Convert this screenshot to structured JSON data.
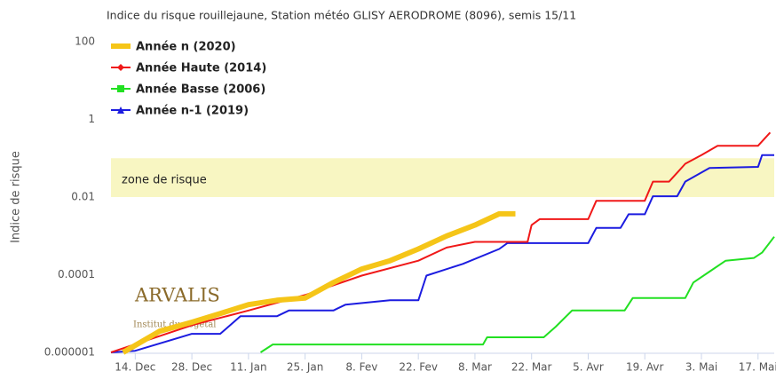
{
  "chart_data": {
    "type": "line",
    "title": "Indice du risque rouillejaune, Station météo GLISY AERODROME (8096), semis 15/11",
    "y_label": "Indice de risque",
    "log_scale": true,
    "grid": false,
    "legend": "top-left",
    "xlim": [
      8,
      172
    ],
    "xticks": [
      {
        "value": 14,
        "label": "14. Dec"
      },
      {
        "value": 28,
        "label": "28. Dec"
      },
      {
        "value": 42,
        "label": "11. Jan"
      },
      {
        "value": 56,
        "label": "25. Jan"
      },
      {
        "value": 70,
        "label": "8. Fev"
      },
      {
        "value": 84,
        "label": "22. Fev"
      },
      {
        "value": 98,
        "label": "8. Mar"
      },
      {
        "value": 112,
        "label": "22. Mar"
      },
      {
        "value": 126,
        "label": "5. Avr"
      },
      {
        "value": 140,
        "label": "19. Avr"
      },
      {
        "value": 154,
        "label": "3. Mai"
      },
      {
        "value": 168,
        "label": "17. Mai"
      }
    ],
    "ylim": [
      1e-06,
      100
    ],
    "yticks": [
      1e-06,
      0.0001,
      0.01,
      1,
      100
    ],
    "bands": [
      {
        "from": 0.01,
        "to": 0.1,
        "label": "zone de risque",
        "color": "#f8f6c2"
      }
    ],
    "logo": {
      "name": "ARVALIS",
      "subtitle": "Institut du végétal"
    },
    "series": [
      {
        "name": "Année n (2020)",
        "color": "#f5c518",
        "width": 6,
        "marker": "bar",
        "x": [
          11,
          20,
          28,
          35,
          42,
          49,
          56,
          63,
          70,
          77,
          84,
          91,
          98,
          104,
          108
        ],
        "values": [
          1e-06,
          3.5e-06,
          6e-06,
          1e-05,
          1.7e-05,
          2.2e-05,
          2.5e-05,
          6.3e-05,
          0.00014,
          0.00023,
          0.00046,
          0.001,
          0.0019,
          0.0037,
          0.0037
        ]
      },
      {
        "name": "Année Haute (2014)",
        "color": "#f01818",
        "width": 2,
        "marker": "diamond",
        "x": [
          8,
          28,
          42,
          56,
          70,
          84,
          91,
          98,
          111,
          112,
          114,
          126,
          128,
          140,
          142,
          146,
          150,
          154,
          158,
          168,
          171
        ],
        "values": [
          1e-06,
          5e-06,
          1.2e-05,
          3e-05,
          9.5e-05,
          0.00023,
          0.0005,
          0.0007,
          0.0007,
          0.0019,
          0.0027,
          0.0027,
          0.008,
          0.008,
          0.025,
          0.025,
          0.072,
          0.12,
          0.21,
          0.21,
          0.46
        ]
      },
      {
        "name": "Année Basse (2006)",
        "color": "#22e022",
        "width": 2,
        "marker": "square",
        "x": [
          45,
          48,
          100,
          101,
          115,
          118,
          122,
          135,
          137,
          150,
          152,
          156,
          160,
          167,
          169,
          172
        ],
        "values": [
          1e-06,
          1.6e-06,
          1.6e-06,
          2.45e-06,
          2.45e-06,
          4.6e-06,
          1.2e-05,
          1.2e-05,
          2.5e-05,
          2.5e-05,
          6.3e-05,
          0.00012,
          0.00023,
          0.00027,
          0.00037,
          0.00095
        ]
      },
      {
        "name": "Année n-1 (2019)",
        "color": "#1c1ce0",
        "width": 2,
        "marker": "triangle",
        "x": [
          8,
          14,
          28,
          35,
          40,
          49,
          52,
          63,
          66,
          77,
          84,
          86,
          95,
          104,
          106,
          126,
          128,
          134,
          136,
          140,
          142,
          148,
          150,
          156,
          168,
          169,
          172
        ],
        "values": [
          1e-06,
          1.1e-06,
          3e-06,
          3e-06,
          8.5e-06,
          8.5e-06,
          1.2e-05,
          1.2e-05,
          1.7e-05,
          2.2e-05,
          2.2e-05,
          9.5e-05,
          0.00019,
          0.00046,
          0.00065,
          0.00065,
          0.0016,
          0.0016,
          0.0036,
          0.0036,
          0.0105,
          0.0105,
          0.025,
          0.056,
          0.06,
          0.12,
          0.12
        ]
      }
    ]
  }
}
